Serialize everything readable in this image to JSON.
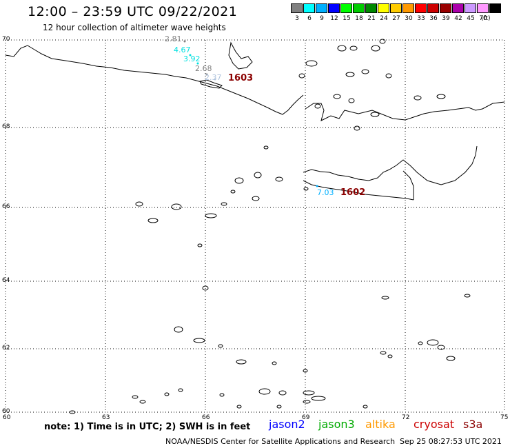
{
  "header": {
    "title": "12:00 – 23:59 UTC 09/22/2021",
    "subtitle": "12 hour collection of altimeter wave heights"
  },
  "legend": {
    "unit": "(ft)",
    "items": [
      {
        "value": "3",
        "color": "#808080"
      },
      {
        "value": "6",
        "color": "#00ffff"
      },
      {
        "value": "9",
        "color": "#00b0ff"
      },
      {
        "value": "12",
        "color": "#0000ff"
      },
      {
        "value": "15",
        "color": "#00ff00"
      },
      {
        "value": "18",
        "color": "#00cc00"
      },
      {
        "value": "21",
        "color": "#008800"
      },
      {
        "value": "24",
        "color": "#ffff00"
      },
      {
        "value": "27",
        "color": "#ffcc00"
      },
      {
        "value": "30",
        "color": "#ff9900"
      },
      {
        "value": "33",
        "color": "#ff0000"
      },
      {
        "value": "36",
        "color": "#cc0000"
      },
      {
        "value": "39",
        "color": "#990000"
      },
      {
        "value": "42",
        "color": "#aa00aa"
      },
      {
        "value": "45",
        "color": "#cc99ff"
      },
      {
        "value": "70",
        "color": "#ff99ff"
      },
      {
        "value": "",
        "color": "#000000"
      }
    ]
  },
  "map": {
    "lat_labels": [
      "70",
      "68",
      "66",
      "64",
      "62",
      "60"
    ],
    "lon_labels": [
      "60",
      "63",
      "66",
      "69",
      "72",
      "75"
    ],
    "wave_labels": [
      {
        "text": "2.81",
        "color": "#808080"
      },
      {
        "text": "4.67",
        "color": "#00e0e0"
      },
      {
        "text": "3.92",
        "color": "#00e0e0"
      },
      {
        "text": "2.68",
        "color": "#808080"
      },
      {
        "text": "2.37",
        "color": "#b0c4de"
      },
      {
        "text": "7.03",
        "color": "#00b0ff"
      }
    ],
    "observation_times": [
      "1603",
      "1602"
    ],
    "observation_color": "#8b0000"
  },
  "footer": {
    "note": "note: 1) Time is in UTC; 2) SWH is in feet",
    "missions": [
      {
        "name": "jason2",
        "color": "#0000ff"
      },
      {
        "name": "jason3",
        "color": "#00aa00"
      },
      {
        "name": "altika",
        "color": "#ff9900"
      },
      {
        "name": "cryosat",
        "color": "#cc0000"
      },
      {
        "name": "s3a",
        "color": "#8b0000"
      }
    ],
    "credit": "NOAA/NESDIS Center for Satellite Applications and Research",
    "timestamp": "Sep 25 08:27:53 UTC 2021"
  }
}
